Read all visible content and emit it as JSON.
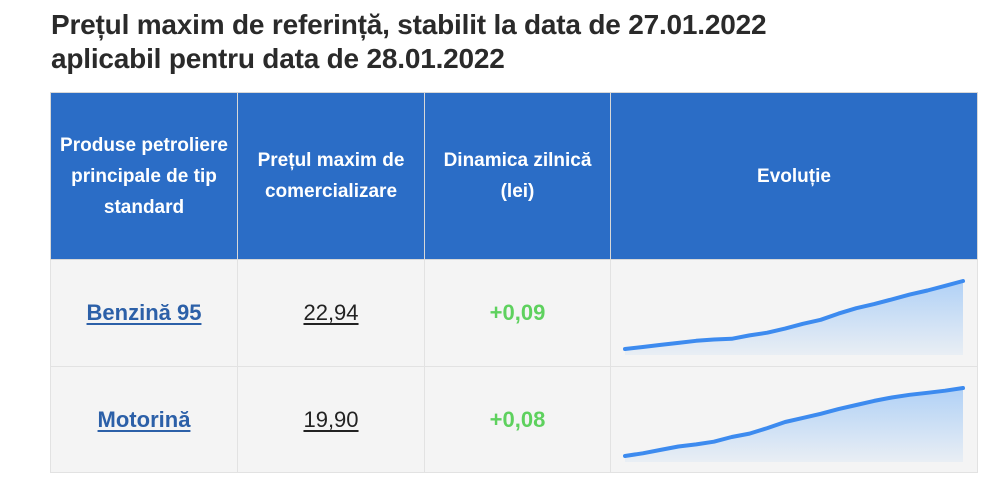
{
  "title": {
    "line1": "Prețul maxim de referință, stabilit la data de 27.01.2022",
    "line2": "aplicabil pentru data de 28.01.2022"
  },
  "table": {
    "headers": [
      "Produse petroliere principale de tip standard",
      "Prețul maxim de comercializare",
      "Dinamica zilnică (lei)",
      "Evoluție"
    ],
    "rows": [
      {
        "product": "Benzină 95",
        "price": "22,94",
        "change": "+0,09",
        "trend": [
          0.0,
          0.03,
          0.06,
          0.09,
          0.12,
          0.14,
          0.15,
          0.2,
          0.24,
          0.3,
          0.37,
          0.43,
          0.52,
          0.6,
          0.66,
          0.73,
          0.8,
          0.86,
          0.93,
          1.0
        ]
      },
      {
        "product": "Motorină",
        "price": "19,90",
        "change": "+0,08",
        "trend": [
          0.0,
          0.04,
          0.09,
          0.14,
          0.17,
          0.21,
          0.28,
          0.33,
          0.41,
          0.5,
          0.56,
          0.62,
          0.69,
          0.75,
          0.81,
          0.86,
          0.9,
          0.93,
          0.96,
          1.0
        ]
      }
    ]
  },
  "colors": {
    "header_bg": "#2b6dc6",
    "link": "#2c60a8",
    "positive": "#5ed15e",
    "spark_line": "#3d8bef",
    "spark_fill": "#a9cdf6"
  }
}
